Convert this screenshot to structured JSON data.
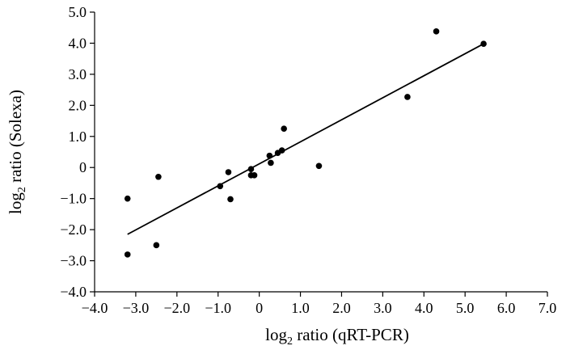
{
  "chart_data": {
    "type": "scatter",
    "xlabel": {
      "prefix": "log",
      "sub": "2",
      "suffix": " ratio (qRT-PCR)"
    },
    "ylabel": {
      "prefix": "log",
      "sub": "2",
      "suffix": " ratio (Solexa)"
    },
    "xlim": [
      -4.0,
      7.0
    ],
    "ylim": [
      -4.0,
      5.0
    ],
    "x_ticks": [
      -4.0,
      -3.0,
      -2.0,
      -1.0,
      0,
      1.0,
      2.0,
      3.0,
      4.0,
      5.0,
      6.0,
      7.0
    ],
    "x_tick_labels": [
      "−4.0",
      "−3.0",
      "−2.0",
      "−1.0",
      "0",
      "1.0",
      "2.0",
      "3.0",
      "4.0",
      "5.0",
      "6.0",
      "7.0"
    ],
    "y_ticks": [
      -4.0,
      -3.0,
      -2.0,
      -1.0,
      0,
      1.0,
      2.0,
      3.0,
      4.0,
      5.0
    ],
    "y_tick_labels": [
      "−4.0",
      "−3.0",
      "−2.0",
      "−1.0",
      "0",
      "1.0",
      "2.0",
      "3.0",
      "4.0",
      "5.0"
    ],
    "grid": false,
    "points": [
      {
        "x": -3.2,
        "y": -1.0
      },
      {
        "x": -3.2,
        "y": -2.8
      },
      {
        "x": -2.45,
        "y": -0.3
      },
      {
        "x": -2.5,
        "y": -2.5
      },
      {
        "x": -0.95,
        "y": -0.6
      },
      {
        "x": -0.75,
        "y": -0.15
      },
      {
        "x": -0.7,
        "y": -1.02
      },
      {
        "x": -0.2,
        "y": -0.05
      },
      {
        "x": -0.2,
        "y": -0.25
      },
      {
        "x": -0.12,
        "y": -0.25
      },
      {
        "x": 0.25,
        "y": 0.38
      },
      {
        "x": 0.28,
        "y": 0.15
      },
      {
        "x": 0.45,
        "y": 0.47
      },
      {
        "x": 0.55,
        "y": 0.55
      },
      {
        "x": 0.6,
        "y": 1.25
      },
      {
        "x": 1.45,
        "y": 0.05
      },
      {
        "x": 3.6,
        "y": 2.27
      },
      {
        "x": 4.3,
        "y": 4.38
      },
      {
        "x": 5.45,
        "y": 3.98
      }
    ],
    "trendline": {
      "x1": -3.2,
      "y1": -2.15,
      "x2": 5.45,
      "y2": 3.98
    }
  }
}
